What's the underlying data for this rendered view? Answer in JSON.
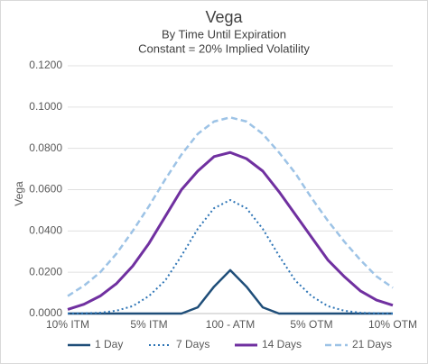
{
  "chart_data": {
    "type": "line",
    "title": "Vega",
    "subtitle": [
      "By Time Until Expiration",
      "Constant = 20% Implied Volatility"
    ],
    "y_label": "Vega",
    "categories": [
      "10% ITM",
      null,
      null,
      null,
      null,
      "5% ITM",
      null,
      null,
      null,
      null,
      "100 - ATM",
      null,
      null,
      null,
      null,
      "5% OTM",
      null,
      null,
      null,
      null,
      "10% OTM"
    ],
    "series": [
      {
        "name": "1 Day",
        "color": "#1f4e79",
        "style": "solid",
        "width": 2.5,
        "values": [
          0,
          0,
          0,
          0,
          0,
          0,
          0,
          0,
          0.003,
          0.013,
          0.021,
          0.013,
          0.003,
          0,
          0,
          0,
          0,
          0,
          0,
          0,
          0
        ]
      },
      {
        "name": "7 Days",
        "color": "#2e75b6",
        "style": "dot",
        "width": 2,
        "values": [
          0,
          0.0001,
          0.0004,
          0.0014,
          0.0036,
          0.0085,
          0.016,
          0.028,
          0.041,
          0.051,
          0.055,
          0.051,
          0.041,
          0.028,
          0.016,
          0.0085,
          0.0036,
          0.0014,
          0.0004,
          0.0001,
          0
        ]
      },
      {
        "name": "14 Days",
        "color": "#7030a0",
        "style": "solid",
        "width": 3,
        "values": [
          0.002,
          0.0045,
          0.0085,
          0.0145,
          0.023,
          0.034,
          0.047,
          0.06,
          0.069,
          0.076,
          0.078,
          0.075,
          0.069,
          0.059,
          0.048,
          0.037,
          0.026,
          0.018,
          0.011,
          0.0065,
          0.004
        ]
      },
      {
        "name": "21 Days",
        "color": "#9dc3e6",
        "style": "dash",
        "width": 2.5,
        "values": [
          0.0085,
          0.0135,
          0.02,
          0.029,
          0.04,
          0.052,
          0.065,
          0.077,
          0.087,
          0.093,
          0.095,
          0.093,
          0.087,
          0.078,
          0.068,
          0.056,
          0.045,
          0.035,
          0.026,
          0.018,
          0.0125
        ]
      }
    ],
    "ylim": [
      0,
      0.12
    ],
    "yticks": [
      {
        "value": 0,
        "label": "0.0000"
      },
      {
        "value": 0.02,
        "label": "0.0200"
      },
      {
        "value": 0.04,
        "label": "0.0400"
      },
      {
        "value": 0.06,
        "label": "0.0600"
      },
      {
        "value": 0.08,
        "label": "0.0800"
      },
      {
        "value": 0.1,
        "label": "0.1000"
      },
      {
        "value": 0.12,
        "label": "0.1200"
      }
    ],
    "grid": true,
    "legend": "bottom"
  }
}
